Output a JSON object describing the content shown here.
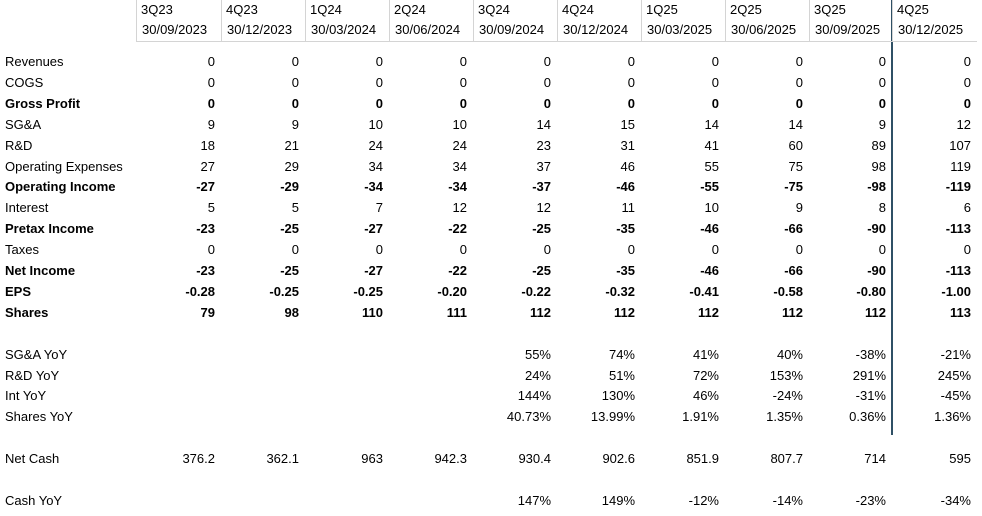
{
  "table": {
    "columns": [
      {
        "quarter": "3Q23",
        "date": "30/09/2023"
      },
      {
        "quarter": "4Q23",
        "date": "30/12/2023"
      },
      {
        "quarter": "1Q24",
        "date": "30/03/2024"
      },
      {
        "quarter": "2Q24",
        "date": "30/06/2024"
      },
      {
        "quarter": "3Q24",
        "date": "30/09/2024"
      },
      {
        "quarter": "4Q24",
        "date": "30/12/2024"
      },
      {
        "quarter": "1Q25",
        "date": "30/03/2025"
      },
      {
        "quarter": "2Q25",
        "date": "30/06/2025"
      },
      {
        "quarter": "3Q25",
        "date": "30/09/2025"
      },
      {
        "quarter": "4Q25",
        "date": "30/12/2025"
      }
    ],
    "rows": [
      {
        "label": "Revenues",
        "bold": false,
        "cells": [
          "0",
          "0",
          "0",
          "0",
          "0",
          "0",
          "0",
          "0",
          "0",
          "0"
        ]
      },
      {
        "label": "COGS",
        "bold": false,
        "cells": [
          "0",
          "0",
          "0",
          "0",
          "0",
          "0",
          "0",
          "0",
          "0",
          "0"
        ]
      },
      {
        "label": "Gross Profit",
        "bold": true,
        "cells": [
          "0",
          "0",
          "0",
          "0",
          "0",
          "0",
          "0",
          "0",
          "0",
          "0"
        ]
      },
      {
        "label": "SG&A",
        "bold": false,
        "cells": [
          "9",
          "9",
          "10",
          "10",
          "14",
          "15",
          "14",
          "14",
          "9",
          "12"
        ]
      },
      {
        "label": "R&D",
        "bold": false,
        "cells": [
          "18",
          "21",
          "24",
          "24",
          "23",
          "31",
          "41",
          "60",
          "89",
          "107"
        ]
      },
      {
        "label": "Operating Expenses",
        "bold": false,
        "cells": [
          "27",
          "29",
          "34",
          "34",
          "37",
          "46",
          "55",
          "75",
          "98",
          "119"
        ]
      },
      {
        "label": "Operating Income",
        "bold": true,
        "cells": [
          "-27",
          "-29",
          "-34",
          "-34",
          "-37",
          "-46",
          "-55",
          "-75",
          "-98",
          "-119"
        ]
      },
      {
        "label": "Interest",
        "bold": false,
        "cells": [
          "5",
          "5",
          "7",
          "12",
          "12",
          "11",
          "10",
          "9",
          "8",
          "6"
        ]
      },
      {
        "label": "Pretax Income",
        "bold": true,
        "cells": [
          "-23",
          "-25",
          "-27",
          "-22",
          "-25",
          "-35",
          "-46",
          "-66",
          "-90",
          "-113"
        ]
      },
      {
        "label": "Taxes",
        "bold": false,
        "cells": [
          "0",
          "0",
          "0",
          "0",
          "0",
          "0",
          "0",
          "0",
          "0",
          "0"
        ]
      },
      {
        "label": "Net Income",
        "bold": true,
        "cells": [
          "-23",
          "-25",
          "-27",
          "-22",
          "-25",
          "-35",
          "-46",
          "-66",
          "-90",
          "-113"
        ]
      },
      {
        "label": "EPS",
        "bold": true,
        "cells": [
          "-0.28",
          "-0.25",
          "-0.25",
          "-0.20",
          "-0.22",
          "-0.32",
          "-0.41",
          "-0.58",
          "-0.80",
          "-1.00"
        ]
      },
      {
        "label": "Shares",
        "bold": true,
        "cells": [
          "79",
          "98",
          "110",
          "111",
          "112",
          "112",
          "112",
          "112",
          "112",
          "113"
        ]
      },
      null,
      {
        "label": "SG&A YoY",
        "bold": false,
        "cells": [
          null,
          null,
          null,
          null,
          "55%",
          "74%",
          "41%",
          "40%",
          "-38%",
          "-21%"
        ]
      },
      {
        "label": "R&D YoY",
        "bold": false,
        "cells": [
          null,
          null,
          null,
          null,
          "24%",
          "51%",
          "72%",
          "153%",
          "291%",
          "245%"
        ]
      },
      {
        "label": "Int YoY",
        "bold": false,
        "cells": [
          null,
          null,
          null,
          null,
          "144%",
          "130%",
          "46%",
          "-24%",
          "-31%",
          "-45%"
        ]
      },
      {
        "label": "Shares YoY",
        "bold": false,
        "cells": [
          null,
          null,
          null,
          null,
          "40.73%",
          "13.99%",
          "1.91%",
          "1.35%",
          "0.36%",
          "1.36%"
        ]
      },
      null,
      {
        "label": "Net Cash",
        "bold": false,
        "cells": [
          "376.2",
          "362.1",
          "963",
          "942.3",
          "930.4",
          "902.6",
          "851.9",
          "807.7",
          "714",
          "595"
        ]
      },
      null,
      {
        "label": "Cash YoY",
        "bold": false,
        "cells": [
          null,
          null,
          null,
          null,
          "147%",
          "149%",
          "-12%",
          "-14%",
          "-23%",
          "-34%"
        ]
      }
    ]
  }
}
